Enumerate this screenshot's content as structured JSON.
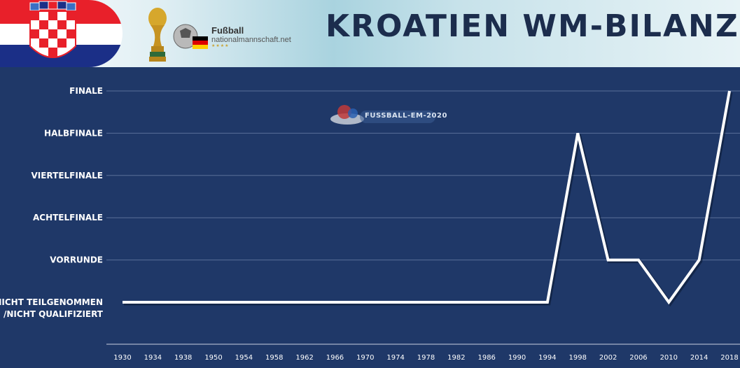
{
  "header": {
    "title": "KROATIEN WM-BILANZ",
    "logo_line1": "Fußball",
    "logo_line2": "nationalmannschaft.net",
    "logo_line3": "★★★★",
    "watermark": "FUSSBALL-EM-2020"
  },
  "colors": {
    "background": "#1f3868",
    "line": "#ffffff",
    "grid": "#5a6f98"
  },
  "chart_data": {
    "type": "line",
    "title": "KROATIEN WM-BILANZ",
    "categories": [
      "1930",
      "1934",
      "1938",
      "1950",
      "1954",
      "1958",
      "1962",
      "1966",
      "1970",
      "1974",
      "1978",
      "1982",
      "1986",
      "1990",
      "1994",
      "1998",
      "2002",
      "2006",
      "2010",
      "2014",
      "2018"
    ],
    "y_levels": [
      [
        "NICHT TEILGENOMMEN",
        "/NICHT QUALIFIZIERT"
      ],
      [
        "VORRUNDE"
      ],
      [
        "ACHTELFINALE"
      ],
      [
        "VIERTELFINALE"
      ],
      [
        "HALBFINALE"
      ],
      [
        "FINALE"
      ]
    ],
    "series": [
      {
        "values": [
          0,
          0,
          0,
          0,
          0,
          0,
          0,
          0,
          0,
          0,
          0,
          0,
          0,
          0,
          0,
          4,
          1,
          1,
          0,
          1,
          5
        ]
      }
    ],
    "ylim": [
      0,
      5
    ],
    "grid": true,
    "legend": "none"
  }
}
